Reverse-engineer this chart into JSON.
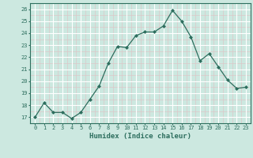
{
  "x": [
    0,
    1,
    2,
    3,
    4,
    5,
    6,
    7,
    8,
    9,
    10,
    11,
    12,
    13,
    14,
    15,
    16,
    17,
    18,
    19,
    20,
    21,
    22,
    23
  ],
  "y": [
    17.0,
    18.2,
    17.4,
    17.4,
    16.9,
    17.4,
    18.5,
    19.6,
    21.5,
    22.9,
    22.8,
    23.8,
    24.1,
    24.1,
    24.6,
    25.9,
    25.0,
    23.7,
    21.7,
    22.3,
    21.2,
    20.1,
    19.4,
    19.5
  ],
  "line_color": "#2d6e5e",
  "marker": "D",
  "marker_size": 2.0,
  "bg_color": "#cce8e0",
  "xlabel": "Humidex (Indice chaleur)",
  "xlim": [
    -0.5,
    23.5
  ],
  "ylim": [
    16.5,
    26.5
  ],
  "yticks": [
    17,
    18,
    19,
    20,
    21,
    22,
    23,
    24,
    25,
    26
  ],
  "xticks": [
    0,
    1,
    2,
    3,
    4,
    5,
    6,
    7,
    8,
    9,
    10,
    11,
    12,
    13,
    14,
    15,
    16,
    17,
    18,
    19,
    20,
    21,
    22,
    23
  ],
  "tick_color": "#2d6e5e",
  "label_color": "#2d6e5e",
  "spine_color": "#2d6e5e",
  "grid_major_color": "#ffffff",
  "grid_minor_color": "#dcc8c8"
}
